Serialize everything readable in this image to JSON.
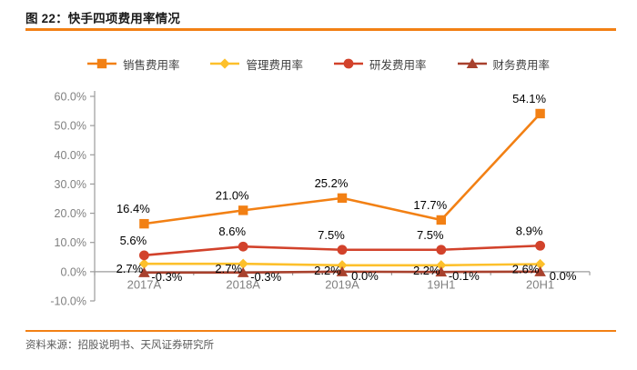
{
  "header": {
    "title": "图 22：快手四项费用率情况"
  },
  "footer": {
    "source": "资料来源：招股说明书、天风证券研究所"
  },
  "colors": {
    "accent_rule": "#f28014",
    "axis_line": "#9b9b9b",
    "tick_text": "#808080",
    "data_label": "#000000"
  },
  "chart_data": {
    "type": "line",
    "title": "快手四项费用率情况",
    "categories": [
      "2017A",
      "2018A",
      "2019A",
      "19H1",
      "20H1"
    ],
    "series": [
      {
        "name": "销售费用率",
        "marker": "square",
        "color": "#f28014",
        "values": [
          16.4,
          21.0,
          25.2,
          17.7,
          54.1
        ],
        "labels": [
          "16.4%",
          "21.0%",
          "25.2%",
          "17.7%",
          "54.1%"
        ]
      },
      {
        "name": "管理费用率",
        "marker": "diamond",
        "color": "#fdc02b",
        "values": [
          2.7,
          2.7,
          2.2,
          2.2,
          2.6
        ],
        "labels": [
          "2.7%",
          "2.7%",
          "2.2%",
          "2.2%",
          "2.6%"
        ]
      },
      {
        "name": "研发费用率",
        "marker": "circle",
        "color": "#d2422b",
        "values": [
          5.6,
          8.6,
          7.5,
          7.5,
          8.9
        ],
        "labels": [
          "5.6%",
          "8.6%",
          "7.5%",
          "7.5%",
          "8.9%"
        ]
      },
      {
        "name": "财务费用率",
        "marker": "triangle",
        "color": "#a8412d",
        "values": [
          -0.3,
          -0.3,
          0.0,
          -0.1,
          0.0
        ],
        "labels": [
          "-0.3%",
          "-0.3%",
          "0.0%",
          "-0.1%",
          "0.0%"
        ]
      }
    ],
    "ylim": [
      -10,
      60
    ],
    "ytick_step": 10,
    "ytick_labels": [
      "60.0%",
      "50.0%",
      "40.0%",
      "30.0%",
      "20.0%",
      "10.0%",
      "0.0%",
      "-10.0%"
    ],
    "grid": false,
    "legend_position": "top"
  }
}
